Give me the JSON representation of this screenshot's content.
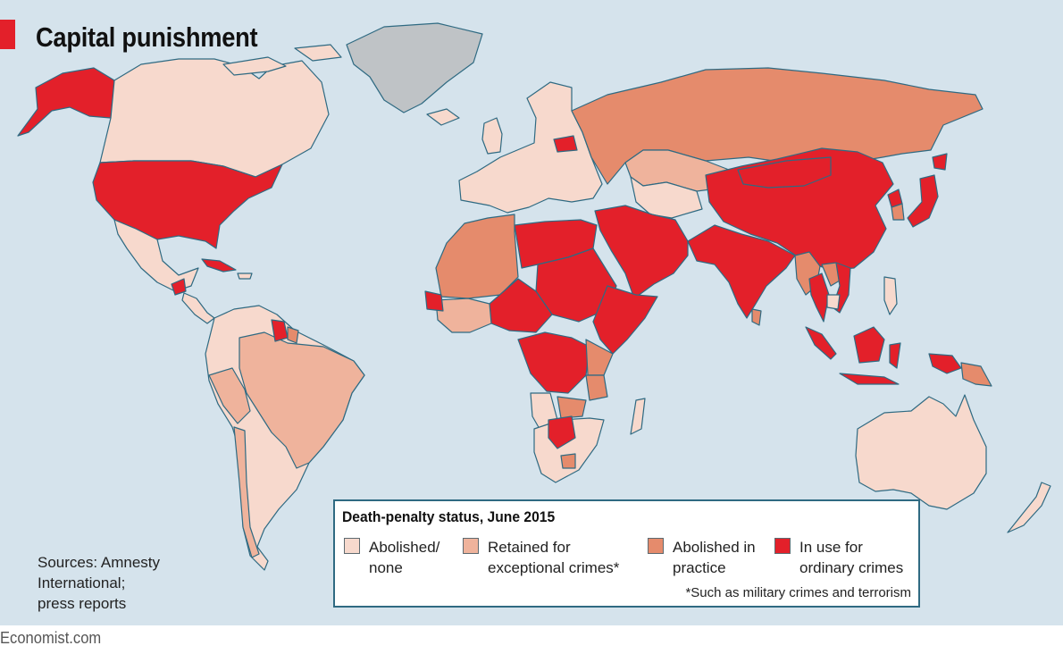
{
  "title": "Capital punishment",
  "sources": [
    "Sources: Amnesty",
    "International;",
    "press reports"
  ],
  "brand": "Economist.com",
  "colors": {
    "ocean": "#d5e3ec",
    "border": "#2f6a82",
    "abolished": "#f7d9cd",
    "exceptional": "#efb39c",
    "practice": "#e58b6c",
    "ordinary": "#e3202a",
    "no_data": "#bfc3c6"
  },
  "legend": {
    "title": "Death-penalty status, June 2015",
    "items": [
      {
        "key": "abolished",
        "line1": "Abolished/",
        "line2": "none"
      },
      {
        "key": "exceptional",
        "line1": "Retained for",
        "line2": "exceptional crimes*"
      },
      {
        "key": "practice",
        "line1": "Abolished in",
        "line2": "practice"
      },
      {
        "key": "ordinary",
        "line1": "In use for",
        "line2": "ordinary crimes"
      }
    ],
    "footnote": "*Such as military crimes and terrorism"
  },
  "regions": [
    {
      "name": "alaska",
      "status": "ordinary"
    },
    {
      "name": "canada",
      "status": "abolished"
    },
    {
      "name": "greenland",
      "status": "no_data"
    },
    {
      "name": "united-states",
      "status": "ordinary"
    },
    {
      "name": "mexico",
      "status": "abolished"
    },
    {
      "name": "guatemala",
      "status": "ordinary"
    },
    {
      "name": "cuba",
      "status": "ordinary"
    },
    {
      "name": "south-america",
      "status": "abolished"
    },
    {
      "name": "brazil",
      "status": "exceptional"
    },
    {
      "name": "peru",
      "status": "exceptional"
    },
    {
      "name": "chile",
      "status": "exceptional"
    },
    {
      "name": "guyana",
      "status": "ordinary"
    },
    {
      "name": "suriname",
      "status": "practice"
    },
    {
      "name": "iceland",
      "status": "abolished"
    },
    {
      "name": "united-kingdom",
      "status": "abolished"
    },
    {
      "name": "europe",
      "status": "abolished"
    },
    {
      "name": "belarus",
      "status": "ordinary"
    },
    {
      "name": "russia",
      "status": "practice"
    },
    {
      "name": "kazakhstan",
      "status": "exceptional"
    },
    {
      "name": "central-asia",
      "status": "abolished"
    },
    {
      "name": "middle-east",
      "status": "ordinary"
    },
    {
      "name": "china",
      "status": "ordinary"
    },
    {
      "name": "mongolia",
      "status": "ordinary"
    },
    {
      "name": "india",
      "status": "ordinary"
    },
    {
      "name": "sri-lanka",
      "status": "practice"
    },
    {
      "name": "japan",
      "status": "ordinary"
    },
    {
      "name": "south-korea",
      "status": "practice"
    },
    {
      "name": "north-korea",
      "status": "ordinary"
    },
    {
      "name": "myanmar",
      "status": "practice"
    },
    {
      "name": "thailand",
      "status": "ordinary"
    },
    {
      "name": "vietnam",
      "status": "ordinary"
    },
    {
      "name": "laos",
      "status": "practice"
    },
    {
      "name": "cambodia",
      "status": "abolished"
    },
    {
      "name": "indonesia",
      "status": "ordinary"
    },
    {
      "name": "philippines",
      "status": "abolished"
    },
    {
      "name": "papua-new-guinea",
      "status": "practice"
    },
    {
      "name": "australia",
      "status": "abolished"
    },
    {
      "name": "new-zealand",
      "status": "abolished"
    },
    {
      "name": "north-africa",
      "status": "practice"
    },
    {
      "name": "egypt-libya",
      "status": "ordinary"
    },
    {
      "name": "sudan",
      "status": "ordinary"
    },
    {
      "name": "ethiopia-somalia",
      "status": "ordinary"
    },
    {
      "name": "kenya",
      "status": "practice"
    },
    {
      "name": "nigeria-chad",
      "status": "ordinary"
    },
    {
      "name": "west-africa",
      "status": "exceptional"
    },
    {
      "name": "gambia",
      "status": "ordinary"
    },
    {
      "name": "congo",
      "status": "ordinary"
    },
    {
      "name": "angola",
      "status": "abolished"
    },
    {
      "name": "southern-africa",
      "status": "abolished"
    },
    {
      "name": "zambia",
      "status": "practice"
    },
    {
      "name": "tanzania",
      "status": "practice"
    },
    {
      "name": "botswana",
      "status": "ordinary"
    },
    {
      "name": "zimbabwe",
      "status": "practice"
    },
    {
      "name": "madagascar",
      "status": "abolished"
    }
  ]
}
